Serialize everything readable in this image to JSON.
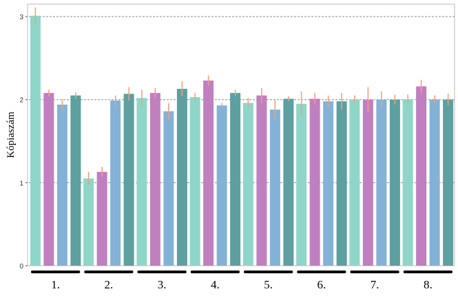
{
  "chart_data": {
    "type": "bar",
    "ylabel": "Kópiaszám",
    "ylim": [
      0,
      3.15
    ],
    "yticks": [
      0,
      1,
      2,
      3
    ],
    "ytick_labels": [
      "0",
      "1",
      "2",
      "3"
    ],
    "gridlines": "dashed horizontal at 1, 2, 3",
    "groups": [
      "1.",
      "2.",
      "3.",
      "4.",
      "5.",
      "6.",
      "7.",
      "8."
    ],
    "bars_per_group": 4,
    "bar_colors": [
      "#8fd6c9",
      "#c07fbf",
      "#84b2d6",
      "#5e9fa0"
    ],
    "error_bar_color": "#f2a07e",
    "series": [
      {
        "values": [
          3.01,
          1.05,
          2.02,
          2.03,
          1.96,
          1.95,
          2.0,
          2.0
        ],
        "errors": [
          0.1,
          0.08,
          0.1,
          0.05,
          0.06,
          0.15,
          0.05,
          0.06
        ]
      },
      {
        "values": [
          2.08,
          1.13,
          2.08,
          2.23,
          2.05,
          2.01,
          2.0,
          2.16
        ],
        "errors": [
          0.04,
          0.06,
          0.06,
          0.06,
          0.09,
          0.07,
          0.15,
          0.08
        ]
      },
      {
        "values": [
          1.94,
          1.99,
          1.86,
          1.93,
          1.88,
          1.98,
          2.0,
          2.0
        ],
        "errors": [
          0.06,
          0.06,
          0.1,
          0.03,
          0.12,
          0.07,
          0.1,
          0.05
        ]
      },
      {
        "values": [
          2.05,
          2.07,
          2.13,
          2.08,
          2.01,
          1.98,
          2.0,
          2.0
        ],
        "errors": [
          0.04,
          0.08,
          0.09,
          0.04,
          0.03,
          0.1,
          0.06,
          0.07
        ]
      }
    ]
  }
}
